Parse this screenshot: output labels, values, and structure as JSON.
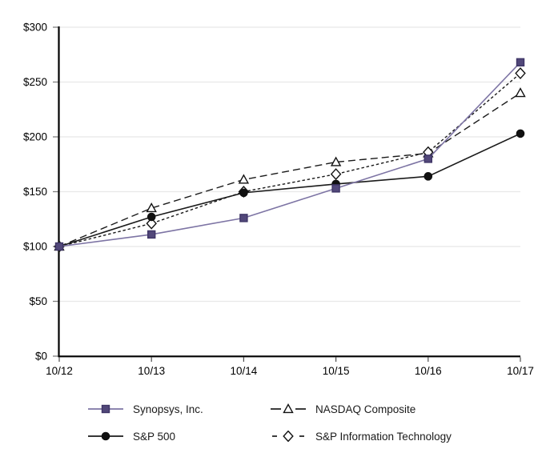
{
  "figure": {
    "description": "Comparison of cumulative total return line chart",
    "background": "#FFFFFF"
  },
  "chart_data": {
    "type": "line",
    "title": "",
    "xlabel": "",
    "ylabel": "",
    "x": [
      "10/12",
      "10/13",
      "10/14",
      "10/15",
      "10/16",
      "10/17"
    ],
    "series": [
      {
        "name": "Synopsys, Inc.",
        "values": [
          100,
          111,
          126,
          153,
          180,
          268
        ],
        "color": "#7D74A4",
        "marker": "square-filled",
        "marker_fill": "#52487A",
        "marker_stroke": "#3E3566",
        "line_style": "solid",
        "z": 3
      },
      {
        "name": "S&P 500",
        "values": [
          100,
          127,
          149,
          157,
          164,
          203
        ],
        "color": "#1A1A1A",
        "marker": "circle-filled",
        "marker_fill": "#111111",
        "marker_stroke": "#111111",
        "line_style": "solid",
        "z": 2
      },
      {
        "name": "NASDAQ Composite",
        "values": [
          100,
          135,
          161,
          177,
          185,
          240
        ],
        "color": "#1A1A1A",
        "marker": "triangle-open",
        "marker_fill": "#FFFFFF",
        "marker_stroke": "#111111",
        "line_style": "long-dash",
        "z": 0
      },
      {
        "name": "S&P Information Technology",
        "values": [
          100,
          121,
          150,
          166,
          186,
          258
        ],
        "color": "#1A1A1A",
        "marker": "diamond-open",
        "marker_fill": "#FFFFFF",
        "marker_stroke": "#111111",
        "line_style": "short-dash",
        "z": 1
      }
    ],
    "y_axis": {
      "tick_labels": [
        "$0",
        "$50",
        "$100",
        "$150",
        "$200",
        "$250",
        "$300"
      ],
      "tick_values": [
        0,
        50,
        100,
        150,
        200,
        250,
        300
      ],
      "min": 0,
      "max": 300
    },
    "x_axis": {
      "tick_labels": [
        "10/12",
        "10/13",
        "10/14",
        "10/15",
        "10/16",
        "10/17"
      ]
    },
    "grid": "horizontal",
    "legend_position": "bottom"
  },
  "colors": {
    "gridline": "#E8E8E8",
    "axis": "#000000",
    "y_tick": "#808080",
    "x_tick": "#4D4D4D",
    "text": "#000000",
    "background": "#FFFFFF"
  }
}
